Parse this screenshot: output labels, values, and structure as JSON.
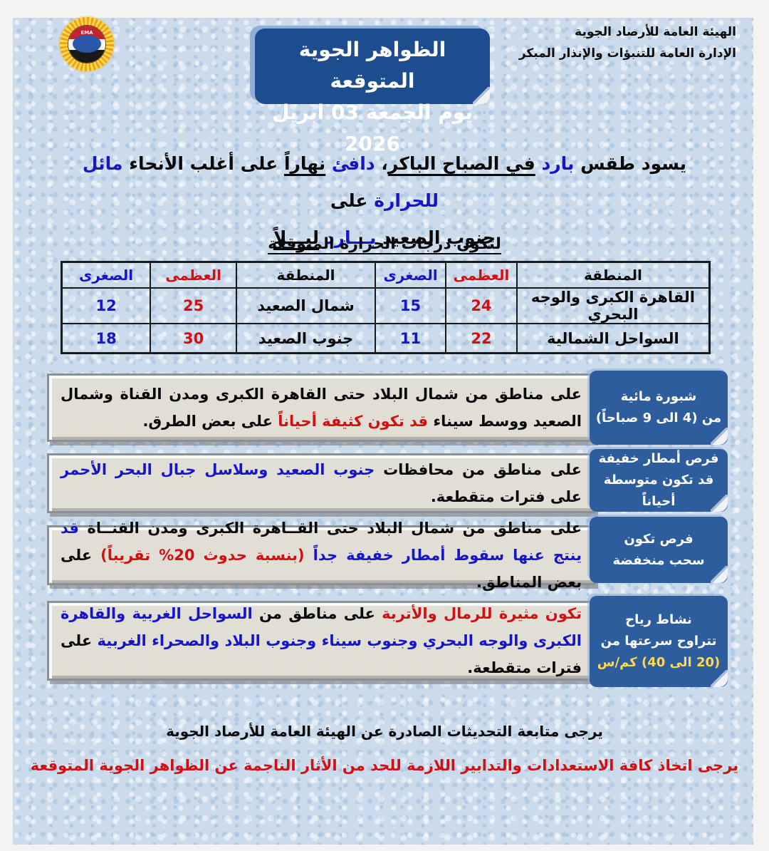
{
  "colors": {
    "page_bg": "#ccdbeb",
    "margin_bg": "#f3f3f1",
    "title_box_bg": "#1d4c8f",
    "label_box_bg": "#2e5d9e",
    "panel_bg": "#e1ded6",
    "text_black": "#0a0a0a",
    "text_blue": "#1616c8",
    "text_red": "#d01113",
    "text_yellow": "#ffd84d"
  },
  "header": {
    "agency_line1": "الهيئة العامة للأرصاد الجوية",
    "agency_line2": "الإدارة العامة للتنبؤات والإنذار المبكر",
    "logo_text": "EMA",
    "title_line1": "الظواهر الجوية المتوقعة",
    "title_line2": "يوم الجمعة 03 ابريل 2026"
  },
  "summary": {
    "line1": [
      {
        "t": "يسود طقس "
      },
      {
        "t": "بارد",
        "s": "b"
      },
      {
        "t": " "
      },
      {
        "t": "في الصباح الباكر",
        "s": "u"
      },
      {
        "t": "، "
      },
      {
        "t": "دافئ",
        "s": "b"
      },
      {
        "t": " "
      },
      {
        "t": "نهاراً",
        "s": "u"
      },
      {
        "t": " على أغلب الأنحاء "
      },
      {
        "t": "مائل للحرارة",
        "s": "b"
      },
      {
        "t": " على"
      }
    ],
    "line2": [
      {
        "t": "جنوب الصعيد "
      },
      {
        "t": "بـــارد",
        "s": "b"
      },
      {
        "t": " "
      },
      {
        "t": "ليـــلاً",
        "s": "u"
      }
    ]
  },
  "temps": {
    "title": "لتكون درجات الحرارة المتوقعة",
    "headers": [
      "المنطقة",
      "العظمى",
      "الصغرى",
      "المنطقة",
      "العظمى",
      "الصغرى"
    ],
    "rows": [
      [
        "القاهرة الكبرى والوجه البحري",
        "24",
        "15",
        "شمال الصعيد",
        "25",
        "12"
      ],
      [
        "السواحل الشمالية",
        "22",
        "11",
        "جنوب الصعيد",
        "30",
        "18"
      ]
    ]
  },
  "sections": [
    {
      "label": [
        {
          "t": "شبورة مائية"
        },
        {
          "t": "من (4 الى 9 صباحاً)"
        }
      ],
      "body": [
        {
          "t": "على مناطق من شمال البلاد حتى القاهرة الكبرى ومدن القناة وشمال الصعيد ووسط سيناء "
        },
        {
          "t": "قد تكون كثيفة أحياناً",
          "s": "r"
        },
        {
          "t": " على بعض الطرق."
        }
      ]
    },
    {
      "label": [
        {
          "t": "فرص أمطار خفيفة"
        },
        {
          "t": "قد تكون متوسطة أحياناً"
        }
      ],
      "body": [
        {
          "t": "على مناطق من محافظات "
        },
        {
          "t": "جنوب الصعيد وسلاسل جبال البحر الأحمر",
          "s": "b"
        },
        {
          "t": " على فترات متقطعة."
        }
      ]
    },
    {
      "label": [
        {
          "t": "فرص تكون"
        },
        {
          "t": "سحب منخفضة"
        }
      ],
      "body": [
        {
          "t": "على مناطق من شمال البلاد حتى القــاهرة الكبرى ومدن القنــاة "
        },
        {
          "t": "قد ينتج عنها سقوط أمطار خفيفة جداً ",
          "s": "b"
        },
        {
          "t": "(بنسبة حدوث 20% تقريباً)",
          "s": "r"
        },
        {
          "t": " على بعض المناطق."
        }
      ]
    },
    {
      "label": [
        {
          "t": "نشاط رياح"
        },
        {
          "t": "تتراوح سرعتها من"
        },
        {
          "t": "(20 الى 40) كم/س",
          "s": "y"
        }
      ],
      "body": [
        {
          "t": "تكون مثيرة للرمال والأتربة",
          "s": "r"
        },
        {
          "t": " على مناطق من "
        },
        {
          "t": "السواحل الغربية والقاهرة الكبرى والوجه البحري وجنوب سيناء وجنوب البلاد والصحراء الغربية",
          "s": "b"
        },
        {
          "t": " على فترات متقطعة."
        }
      ]
    }
  ],
  "footer": {
    "note_black": "يرجى متابعة التحديثات الصادرة عن الهيئة العامة للأرصاد الجوية",
    "note_red": "يرجى اتخاذ كافة الاستعدادات والتدابير اللازمة للحد من الأثار الناجمة عن الظواهر الجوية المتوقعة"
  }
}
